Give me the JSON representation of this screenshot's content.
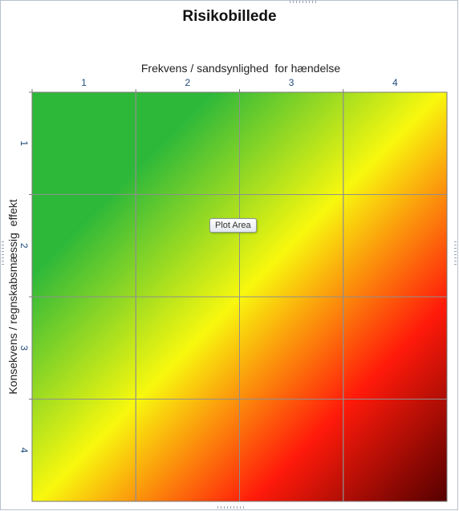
{
  "chart_data": {
    "type": "heatmap",
    "title": "Risikobillede",
    "xlabel": "Frekvens / sandsynlighed  for hændelse",
    "ylabel": "Konsekvens / regnskabsmæssig  effekt",
    "x_categories": [
      "1",
      "2",
      "3",
      "4"
    ],
    "y_categories": [
      "1",
      "2",
      "3",
      "4"
    ],
    "x_axis_position": "top",
    "y_axis_orientation": "reversed",
    "grid": true,
    "colorscale": [
      "#2db83a",
      "#f8f80e",
      "#ff1a0a",
      "#550000"
    ],
    "legend": "none"
  },
  "tooltip": {
    "label": "Plot Area"
  }
}
